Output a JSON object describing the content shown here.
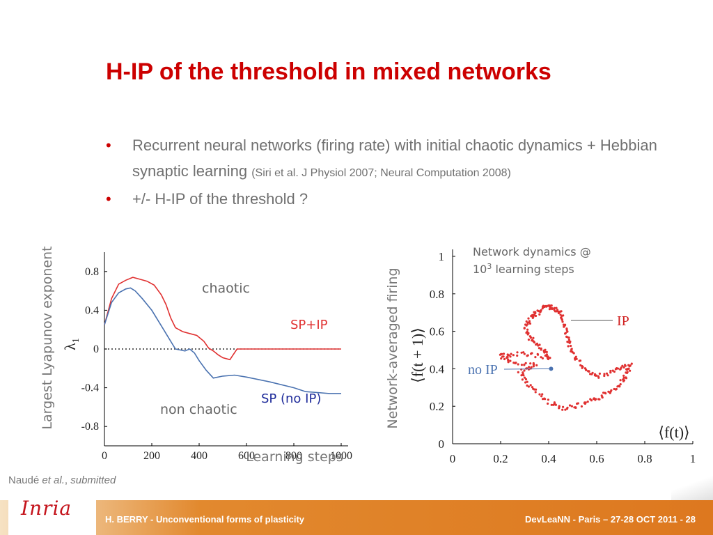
{
  "slide": {
    "title": "H-IP of the threshold in mixed networks",
    "bullets": [
      {
        "main": "Recurrent neural networks (firing rate) with initial chaotic dynamics  + Hebbian synaptic learning ",
        "ref": "(Siri et al. J Physiol 2007; Neural Computation 2008)"
      },
      {
        "main": " +/- H-IP of the threshold ?",
        "ref": ""
      }
    ],
    "citation": {
      "author": "Naudé ",
      "etal": "et al.",
      "sep": ", ",
      "status": "submitted"
    },
    "footer": {
      "left": "H. BERRY - Unconventional forms of plasticity",
      "right": "DevLeaNN - Paris – 27-28 OCT 2011 - 28",
      "logo": "Inria"
    }
  },
  "chart_data": [
    {
      "type": "line",
      "ylabel": "Largest Lyapunov exponent",
      "ysymbol": "λ",
      "ysymbol_sub": "1",
      "xlabel": "Learning steps",
      "xlim": [
        0,
        1000
      ],
      "ylim": [
        -1.0,
        1.0
      ],
      "xticks": [
        "0",
        "200",
        "400",
        "600",
        "800",
        "1000"
      ],
      "yticks": [
        "0.8",
        "0.4",
        "0",
        "-0.4",
        "-0.8"
      ],
      "region_labels": [
        "chaotic",
        "non chaotic"
      ],
      "series": [
        {
          "name": "SP+IP",
          "color": "#e03030",
          "x": [
            0,
            30,
            60,
            90,
            120,
            150,
            180,
            210,
            240,
            260,
            280,
            300,
            330,
            360,
            390,
            420,
            440,
            460,
            480,
            500,
            530,
            560,
            580,
            600,
            700,
            800,
            900,
            1000
          ],
          "y": [
            0.25,
            0.52,
            0.67,
            0.71,
            0.74,
            0.72,
            0.7,
            0.66,
            0.56,
            0.46,
            0.32,
            0.22,
            0.18,
            0.16,
            0.14,
            0.08,
            0.01,
            -0.02,
            -0.06,
            -0.09,
            -0.11,
            0.0,
            0.0,
            0.0,
            0.0,
            0.0,
            0.0,
            0.0
          ]
        },
        {
          "name": "SP (no IP)",
          "color": "#4a72b0",
          "x": [
            0,
            30,
            60,
            90,
            110,
            130,
            160,
            200,
            240,
            280,
            300,
            320,
            340,
            360,
            380,
            400,
            430,
            460,
            500,
            550,
            600,
            700,
            800,
            850,
            900,
            950,
            1000
          ],
          "y": [
            0.25,
            0.48,
            0.58,
            0.62,
            0.63,
            0.6,
            0.52,
            0.4,
            0.24,
            0.08,
            0.0,
            -0.01,
            -0.02,
            0.0,
            -0.04,
            -0.12,
            -0.22,
            -0.3,
            -0.28,
            -0.27,
            -0.29,
            -0.34,
            -0.4,
            -0.44,
            -0.45,
            -0.46,
            -0.46
          ]
        }
      ],
      "reference_line": {
        "y": 0,
        "style": "dotted",
        "color": "#000000"
      }
    },
    {
      "type": "scatter",
      "ylabel": "Network-averaged firing",
      "ysymbol": "⟨f(t + 1)⟩",
      "xsymbol": "⟨f(t)⟩",
      "xlim": [
        0,
        1
      ],
      "ylim": [
        0,
        1
      ],
      "xticks": [
        "0",
        "0.2",
        "0.4",
        "0.6",
        "0.8",
        "1"
      ],
      "yticks": [
        "1",
        "0.8",
        "0.6",
        "0.4",
        "0.2",
        "0"
      ],
      "annotation_lines": [
        "Network dynamics @",
        "10",
        "3",
        " learning steps"
      ],
      "series": [
        {
          "name": "IP",
          "color": "#e03030",
          "attractor_loop": [
            [
              0.35,
              0.42
            ],
            [
              0.28,
              0.38
            ],
            [
              0.33,
              0.3
            ],
            [
              0.4,
              0.22
            ],
            [
              0.47,
              0.19
            ],
            [
              0.55,
              0.21
            ],
            [
              0.62,
              0.25
            ],
            [
              0.68,
              0.3
            ],
            [
              0.72,
              0.36
            ],
            [
              0.74,
              0.42
            ],
            [
              0.68,
              0.39
            ],
            [
              0.6,
              0.36
            ],
            [
              0.55,
              0.4
            ],
            [
              0.5,
              0.48
            ],
            [
              0.48,
              0.56
            ],
            [
              0.47,
              0.63
            ],
            [
              0.45,
              0.7
            ],
            [
              0.42,
              0.72
            ],
            [
              0.39,
              0.74
            ],
            [
              0.36,
              0.7
            ],
            [
              0.33,
              0.68
            ],
            [
              0.3,
              0.62
            ],
            [
              0.33,
              0.55
            ],
            [
              0.38,
              0.5
            ],
            [
              0.4,
              0.46
            ],
            [
              0.3,
              0.48
            ],
            [
              0.2,
              0.47
            ],
            [
              0.24,
              0.44
            ],
            [
              0.35,
              0.42
            ]
          ]
        },
        {
          "name": "no IP",
          "color": "#4a72b0",
          "points": [
            [
              0.41,
              0.4
            ]
          ]
        }
      ]
    }
  ]
}
